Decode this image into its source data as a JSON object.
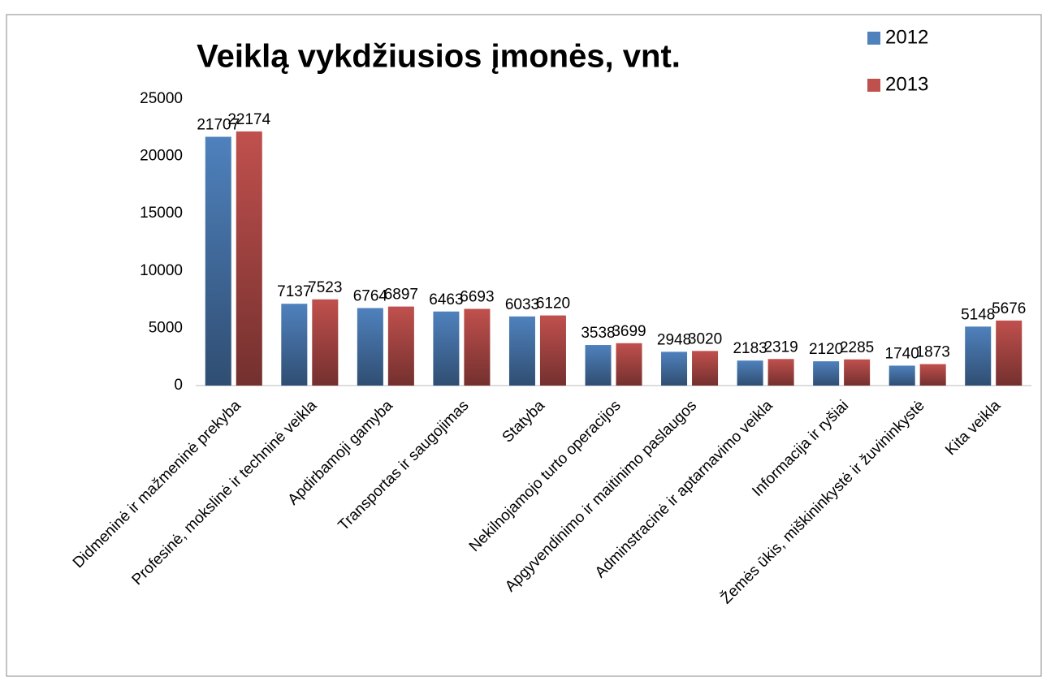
{
  "chart_data": {
    "type": "bar",
    "title": "Veiklą vykdžiusios įmonės, vnt.",
    "categories": [
      "Didmeninė ir mažmeninė prekyba",
      "Profesinė, mokslinė ir techninė veikla",
      "Apdirbamoji gamyba",
      "Transportas ir saugojimas",
      "Statyba",
      "Nekilnojamojo turto operacijos",
      "Apgyvendinimo ir maitinimo paslaugos",
      "Adminstracinė ir aptarnavimo veikla",
      "Informacija ir ryšiai",
      "Žemės ūkis, miškininkystė ir žuvininkystė",
      "Kita veikla"
    ],
    "series": [
      {
        "name": "2012",
        "color": "#4f81bd",
        "values": [
          21707,
          7137,
          6764,
          6463,
          6033,
          3538,
          2948,
          2183,
          2120,
          1740,
          5148
        ]
      },
      {
        "name": "2013",
        "color": "#c0504d",
        "values": [
          22174,
          7523,
          6897,
          6693,
          6120,
          3699,
          3020,
          2319,
          2285,
          1873,
          5676
        ]
      }
    ],
    "ylim": [
      0,
      25000
    ],
    "yticks": [
      0,
      5000,
      10000,
      15000,
      20000,
      25000
    ],
    "grid": false,
    "legend": "top-right"
  }
}
